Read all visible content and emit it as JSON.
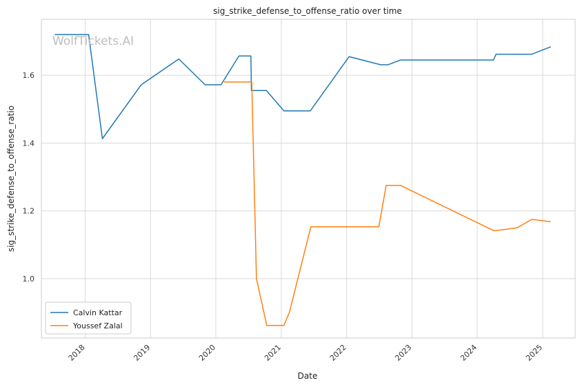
{
  "chart_data": {
    "type": "line",
    "title": "sig_strike_defense_to_offense_ratio over time",
    "xlabel": "Date",
    "ylabel": "sig_strike_defense_to_offense_ratio",
    "watermark": "WolfTickets.AI",
    "xlim": [
      "2017-05-01",
      "2025-07-01"
    ],
    "ylim": [
      0.825,
      1.765
    ],
    "x_ticks": [
      {
        "date": "2018-01-01",
        "label": "2018"
      },
      {
        "date": "2019-01-01",
        "label": "2019"
      },
      {
        "date": "2020-01-01",
        "label": "2020"
      },
      {
        "date": "2021-01-01",
        "label": "2021"
      },
      {
        "date": "2022-01-01",
        "label": "2022"
      },
      {
        "date": "2023-01-01",
        "label": "2023"
      },
      {
        "date": "2024-01-01",
        "label": "2024"
      },
      {
        "date": "2025-01-01",
        "label": "2025"
      }
    ],
    "y_ticks": [
      {
        "value": 1.0,
        "label": "1.0"
      },
      {
        "value": 1.2,
        "label": "1.2"
      },
      {
        "value": 1.4,
        "label": "1.4"
      },
      {
        "value": 1.6,
        "label": "1.6"
      }
    ],
    "grid": true,
    "legend_position": "lower-left",
    "series": [
      {
        "name": "Calvin Kattar",
        "color": "#1f77b4",
        "points": [
          [
            "2017-07-15",
            1.72
          ],
          [
            "2018-01-20",
            1.72
          ],
          [
            "2018-04-07",
            1.413
          ],
          [
            "2018-11-10",
            1.572
          ],
          [
            "2019-06-08",
            1.648
          ],
          [
            "2019-11-02",
            1.572
          ],
          [
            "2020-01-30",
            1.572
          ],
          [
            "2020-05-09",
            1.657
          ],
          [
            "2020-07-15",
            1.657
          ],
          [
            "2020-07-18",
            1.555
          ],
          [
            "2020-10-10",
            1.555
          ],
          [
            "2021-01-16",
            1.495
          ],
          [
            "2021-06-12",
            1.495
          ],
          [
            "2022-01-15",
            1.655
          ],
          [
            "2022-07-10",
            1.631
          ],
          [
            "2022-08-20",
            1.631
          ],
          [
            "2022-10-29",
            1.645
          ],
          [
            "2024-04-01",
            1.645
          ],
          [
            "2024-04-15",
            1.662
          ],
          [
            "2024-11-01",
            1.662
          ],
          [
            "2025-02-15",
            1.684
          ]
        ]
      },
      {
        "name": "Youssef Zalal",
        "color": "#ff7f0e",
        "points": [
          [
            "2020-02-15",
            1.58
          ],
          [
            "2020-07-01",
            1.58
          ],
          [
            "2020-07-20",
            1.58
          ],
          [
            "2020-08-15",
            1.0
          ],
          [
            "2020-10-12",
            0.862
          ],
          [
            "2021-01-15",
            0.862
          ],
          [
            "2021-02-15",
            0.9
          ],
          [
            "2021-06-15",
            1.153
          ],
          [
            "2022-06-30",
            1.153
          ],
          [
            "2022-08-10",
            1.275
          ],
          [
            "2022-10-29",
            1.275
          ],
          [
            "2024-04-01",
            1.142
          ],
          [
            "2024-04-15",
            1.142
          ],
          [
            "2024-08-10",
            1.15
          ],
          [
            "2024-11-01",
            1.175
          ],
          [
            "2025-02-15",
            1.168
          ]
        ]
      }
    ]
  }
}
